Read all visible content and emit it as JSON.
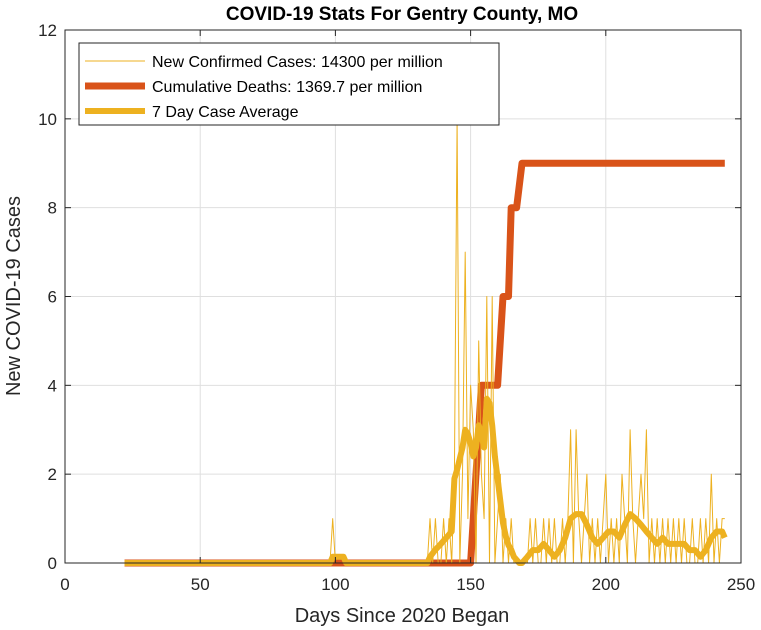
{
  "chart_data": {
    "type": "line",
    "title": "COVID-19 Stats For Gentry County, MO",
    "xlabel": "Days Since 2020 Began",
    "ylabel": "New COVID-19 Cases",
    "xlim": [
      0,
      250
    ],
    "ylim": [
      0,
      12
    ],
    "xticks": [
      0,
      50,
      100,
      150,
      200,
      250
    ],
    "yticks": [
      0,
      2,
      4,
      6,
      8,
      10,
      12
    ],
    "grid": true,
    "legend_position": "top-left",
    "series": [
      {
        "name": "New Confirmed Cases: 14300 per million",
        "color": "#EDB120",
        "style": "thin",
        "points": [
          [
            22,
            0
          ],
          [
            98,
            0
          ],
          [
            99,
            1
          ],
          [
            100,
            0
          ],
          [
            134,
            0
          ],
          [
            135,
            1
          ],
          [
            136,
            0
          ],
          [
            137,
            1
          ],
          [
            138,
            0
          ],
          [
            139,
            0
          ],
          [
            140,
            1
          ],
          [
            141,
            0
          ],
          [
            142,
            1
          ],
          [
            143,
            0
          ],
          [
            144,
            2
          ],
          [
            145,
            10
          ],
          [
            146,
            0
          ],
          [
            147,
            2
          ],
          [
            148,
            7
          ],
          [
            149,
            1
          ],
          [
            150,
            4
          ],
          [
            151,
            3
          ],
          [
            152,
            0
          ],
          [
            153,
            5
          ],
          [
            154,
            2
          ],
          [
            155,
            1
          ],
          [
            156,
            6
          ],
          [
            157,
            0
          ],
          [
            158,
            6
          ],
          [
            159,
            0
          ],
          [
            160,
            1
          ],
          [
            161,
            2
          ],
          [
            162,
            0
          ],
          [
            163,
            1
          ],
          [
            164,
            0
          ],
          [
            165,
            1
          ],
          [
            166,
            0
          ],
          [
            167,
            0
          ],
          [
            168,
            0
          ],
          [
            169,
            0
          ],
          [
            170,
            0
          ],
          [
            171,
            0
          ],
          [
            172,
            1
          ],
          [
            173,
            0
          ],
          [
            174,
            1
          ],
          [
            175,
            0
          ],
          [
            176,
            0
          ],
          [
            177,
            1
          ],
          [
            178,
            0
          ],
          [
            179,
            1
          ],
          [
            180,
            0
          ],
          [
            181,
            1
          ],
          [
            182,
            0
          ],
          [
            183,
            0
          ],
          [
            184,
            1
          ],
          [
            185,
            0
          ],
          [
            186,
            1
          ],
          [
            187,
            3
          ],
          [
            188,
            0
          ],
          [
            189,
            3
          ],
          [
            190,
            1
          ],
          [
            191,
            0
          ],
          [
            192,
            1
          ],
          [
            193,
            2
          ],
          [
            194,
            0
          ],
          [
            195,
            1
          ],
          [
            196,
            0
          ],
          [
            197,
            1
          ],
          [
            198,
            0
          ],
          [
            199,
            1
          ],
          [
            200,
            2
          ],
          [
            201,
            0
          ],
          [
            202,
            1
          ],
          [
            203,
            0
          ],
          [
            204,
            1
          ],
          [
            205,
            0
          ],
          [
            206,
            2
          ],
          [
            207,
            1
          ],
          [
            208,
            0
          ],
          [
            209,
            3
          ],
          [
            210,
            1
          ],
          [
            211,
            0
          ],
          [
            212,
            1
          ],
          [
            213,
            2
          ],
          [
            214,
            1
          ],
          [
            215,
            3
          ],
          [
            216,
            0
          ],
          [
            217,
            1
          ],
          [
            218,
            0
          ],
          [
            219,
            1
          ],
          [
            220,
            0
          ],
          [
            221,
            1
          ],
          [
            222,
            0
          ],
          [
            223,
            1
          ],
          [
            224,
            0
          ],
          [
            225,
            1
          ],
          [
            226,
            0
          ],
          [
            227,
            1
          ],
          [
            228,
            0
          ],
          [
            229,
            1
          ],
          [
            230,
            0
          ],
          [
            231,
            0
          ],
          [
            232,
            1
          ],
          [
            233,
            0
          ],
          [
            234,
            0
          ],
          [
            235,
            1
          ],
          [
            236,
            0
          ],
          [
            237,
            1
          ],
          [
            238,
            0
          ],
          [
            239,
            2
          ],
          [
            240,
            0
          ],
          [
            241,
            1
          ],
          [
            242,
            0
          ],
          [
            243,
            1
          ],
          [
            244,
            1
          ]
        ]
      },
      {
        "name": "Cumulative Deaths: 1369.7 per million",
        "color": "#D95319",
        "style": "thick",
        "points": [
          [
            22,
            0
          ],
          [
            147,
            0
          ],
          [
            150,
            0
          ],
          [
            152,
            2
          ],
          [
            154,
            4
          ],
          [
            160,
            4
          ],
          [
            162,
            6
          ],
          [
            164,
            6
          ],
          [
            165,
            8
          ],
          [
            167,
            8
          ],
          [
            169,
            9
          ],
          [
            244,
            9
          ]
        ]
      },
      {
        "name": "7 Day Case Average",
        "color": "#EDB120",
        "style": "medium",
        "points": [
          [
            22,
            0
          ],
          [
            98,
            0
          ],
          [
            99,
            0.14
          ],
          [
            103,
            0.14
          ],
          [
            104,
            0
          ],
          [
            134,
            0
          ],
          [
            135,
            0.14
          ],
          [
            137,
            0.3
          ],
          [
            139,
            0.43
          ],
          [
            141,
            0.57
          ],
          [
            143,
            0.71
          ],
          [
            144,
            1.9
          ],
          [
            145,
            2.1
          ],
          [
            147,
            2.6
          ],
          [
            148,
            3.0
          ],
          [
            149,
            2.9
          ],
          [
            150,
            2.7
          ],
          [
            151,
            2.4
          ],
          [
            152,
            2.6
          ],
          [
            153,
            3.1
          ],
          [
            154,
            2.9
          ],
          [
            155,
            2.6
          ],
          [
            156,
            3.7
          ],
          [
            157,
            3.6
          ],
          [
            158,
            3.1
          ],
          [
            159,
            2.4
          ],
          [
            160,
            1.9
          ],
          [
            161,
            1.4
          ],
          [
            162,
            0.9
          ],
          [
            163,
            0.6
          ],
          [
            164,
            0.4
          ],
          [
            165,
            0.3
          ],
          [
            166,
            0.14
          ],
          [
            168,
            0.0
          ],
          [
            169,
            0.0
          ],
          [
            171,
            0.14
          ],
          [
            173,
            0.29
          ],
          [
            175,
            0.29
          ],
          [
            177,
            0.43
          ],
          [
            179,
            0.29
          ],
          [
            181,
            0.14
          ],
          [
            183,
            0.29
          ],
          [
            185,
            0.57
          ],
          [
            187,
            1.0
          ],
          [
            189,
            1.1
          ],
          [
            191,
            1.1
          ],
          [
            193,
            0.86
          ],
          [
            195,
            0.57
          ],
          [
            197,
            0.43
          ],
          [
            199,
            0.57
          ],
          [
            201,
            0.71
          ],
          [
            203,
            0.71
          ],
          [
            205,
            0.57
          ],
          [
            207,
            0.86
          ],
          [
            209,
            1.1
          ],
          [
            211,
            1.0
          ],
          [
            213,
            0.86
          ],
          [
            215,
            0.71
          ],
          [
            217,
            0.57
          ],
          [
            219,
            0.43
          ],
          [
            221,
            0.57
          ],
          [
            223,
            0.43
          ],
          [
            225,
            0.43
          ],
          [
            227,
            0.43
          ],
          [
            229,
            0.43
          ],
          [
            231,
            0.29
          ],
          [
            233,
            0.29
          ],
          [
            235,
            0.14
          ],
          [
            237,
            0.29
          ],
          [
            239,
            0.57
          ],
          [
            241,
            0.71
          ],
          [
            243,
            0.71
          ],
          [
            244,
            0.57
          ]
        ]
      }
    ]
  }
}
